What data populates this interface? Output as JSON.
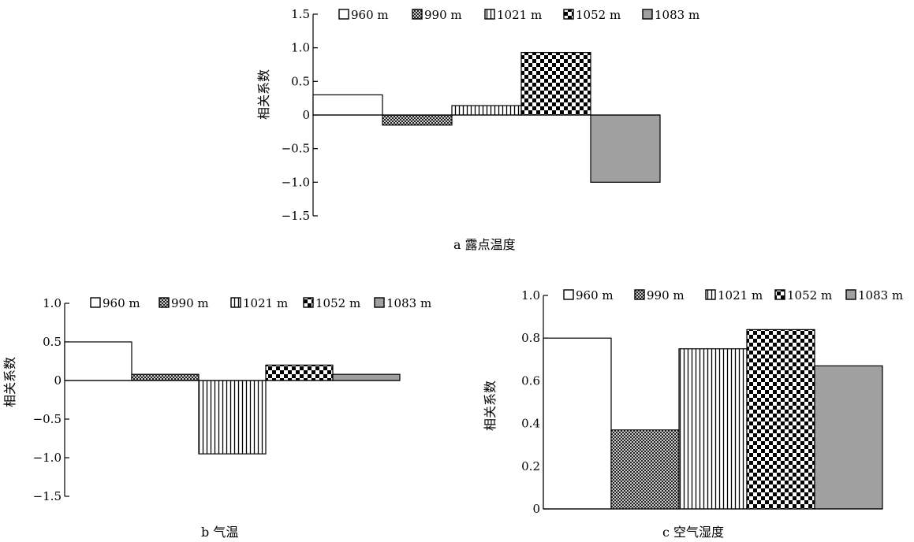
{
  "chart_data": [
    {
      "type": "bar",
      "caption": "a 露点温度",
      "ylabel": "相关系数",
      "ylim": [
        -1.5,
        1.5
      ],
      "yticks": [
        "1.5",
        "1.0",
        "0.5",
        "0",
        "-0.5",
        "-1.0",
        "-1.5"
      ],
      "legend_position": "top",
      "series": [
        {
          "name": "960 m",
          "value": 0.3,
          "pattern": "blank"
        },
        {
          "name": "990 m",
          "value": -0.15,
          "pattern": "crosshatch"
        },
        {
          "name": "1021 m",
          "value": 0.14,
          "pattern": "vertical-lines"
        },
        {
          "name": "1052 m",
          "value": 0.93,
          "pattern": "checker"
        },
        {
          "name": "1083 m",
          "value": -1.0,
          "pattern": "gray"
        }
      ]
    },
    {
      "type": "bar",
      "caption": "b 气温",
      "ylabel": "相关系数",
      "ylim": [
        -1.5,
        1.0
      ],
      "yticks": [
        "1.0",
        "0.5",
        "0",
        "-0.5",
        "-1.0",
        "-1.5"
      ],
      "legend_position": "top",
      "series": [
        {
          "name": "960 m",
          "value": 0.5,
          "pattern": "blank"
        },
        {
          "name": "990 m",
          "value": 0.08,
          "pattern": "crosshatch"
        },
        {
          "name": "1021 m",
          "value": -0.95,
          "pattern": "vertical-lines"
        },
        {
          "name": "1052 m",
          "value": 0.2,
          "pattern": "checker"
        },
        {
          "name": "1083 m",
          "value": 0.08,
          "pattern": "gray"
        }
      ]
    },
    {
      "type": "bar",
      "caption": "c 空气湿度",
      "ylabel": "相关系数",
      "ylim": [
        0,
        1.0
      ],
      "yticks": [
        "1.0",
        "0.8",
        "0.6",
        "0.4",
        "0.2",
        "0"
      ],
      "legend_position": "top",
      "series": [
        {
          "name": "960 m",
          "value": 0.8,
          "pattern": "blank"
        },
        {
          "name": "990 m",
          "value": 0.37,
          "pattern": "crosshatch"
        },
        {
          "name": "1021 m",
          "value": 0.75,
          "pattern": "vertical-lines"
        },
        {
          "name": "1052 m",
          "value": 0.84,
          "pattern": "checker"
        },
        {
          "name": "1083 m",
          "value": 0.67,
          "pattern": "gray"
        }
      ]
    }
  ],
  "colors": {
    "gray_fill": "#a0a0a0",
    "ink": "#000000"
  }
}
